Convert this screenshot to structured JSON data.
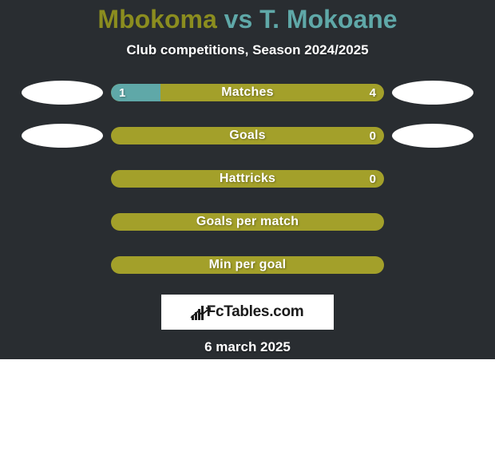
{
  "background_color": "#292d31",
  "player1": {
    "name": "Mbokoma",
    "name_color": "#8b8d1f"
  },
  "vs_text": "vs",
  "vs_color": "#5fa8a8",
  "player2": {
    "name": "T. Mokoane",
    "name_color": "#5fa8a8"
  },
  "subtitle": "Club competitions, Season 2024/2025",
  "stats": [
    {
      "label": "Matches",
      "left_value": "1",
      "right_value": "4",
      "left_fill_pct": 18,
      "bar_color": "#a3a02a",
      "fill_color": "#5fa8a8",
      "show_left_oval": true,
      "show_right_oval": true,
      "left_oval_color": "#ffffff",
      "right_oval_color": "#ffffff"
    },
    {
      "label": "Goals",
      "left_value": "",
      "right_value": "0",
      "left_fill_pct": 0,
      "bar_color": "#a3a02a",
      "fill_color": "#5fa8a8",
      "show_left_oval": true,
      "show_right_oval": true,
      "left_oval_color": "#ffffff",
      "right_oval_color": "#ffffff"
    },
    {
      "label": "Hattricks",
      "left_value": "",
      "right_value": "0",
      "left_fill_pct": 0,
      "bar_color": "#a3a02a",
      "fill_color": "#5fa8a8",
      "show_left_oval": false,
      "show_right_oval": false
    },
    {
      "label": "Goals per match",
      "left_value": "",
      "right_value": "",
      "left_fill_pct": 0,
      "bar_color": "#a3a02a",
      "fill_color": "#5fa8a8",
      "show_left_oval": false,
      "show_right_oval": false
    },
    {
      "label": "Min per goal",
      "left_value": "",
      "right_value": "",
      "left_fill_pct": 0,
      "bar_color": "#a3a02a",
      "fill_color": "#5fa8a8",
      "show_left_oval": false,
      "show_right_oval": false
    }
  ],
  "logo_text": "FcTables.com",
  "date": "6 march 2025",
  "date_color": "#ffffff"
}
